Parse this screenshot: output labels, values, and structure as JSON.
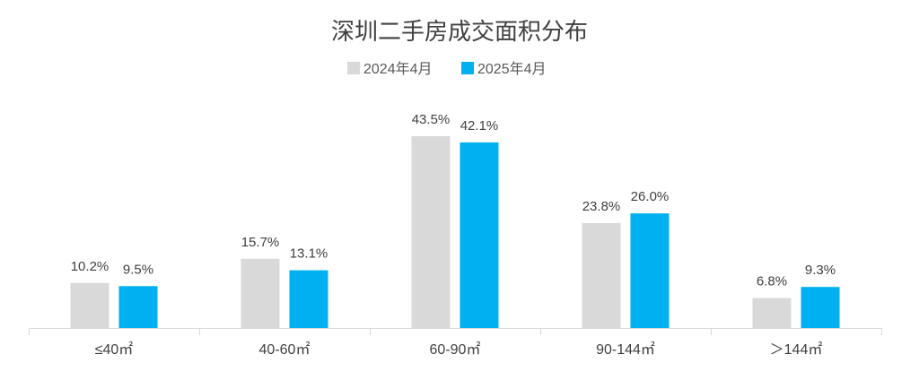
{
  "chart_data": {
    "type": "bar",
    "title": "深圳二手房成交面积分布",
    "categories": [
      "≤40㎡",
      "40-60㎡",
      "60-90㎡",
      "90-144㎡",
      "＞144㎡"
    ],
    "series": [
      {
        "name": "2024年4月",
        "color": "#d9d9d9",
        "values": [
          10.2,
          15.7,
          43.5,
          23.8,
          6.8
        ]
      },
      {
        "name": "2025年4月",
        "color": "#00b0f0",
        "values": [
          9.5,
          13.1,
          42.1,
          26.0,
          9.3
        ]
      }
    ],
    "data_labels": [
      [
        "10.2%",
        "15.7%",
        "43.5%",
        "23.8%",
        "6.8%"
      ],
      [
        "9.5%",
        "13.1%",
        "42.1%",
        "26.0%",
        "9.3%"
      ]
    ],
    "ylim": [
      0,
      50
    ],
    "legend_position": "top-center",
    "grid": false
  }
}
